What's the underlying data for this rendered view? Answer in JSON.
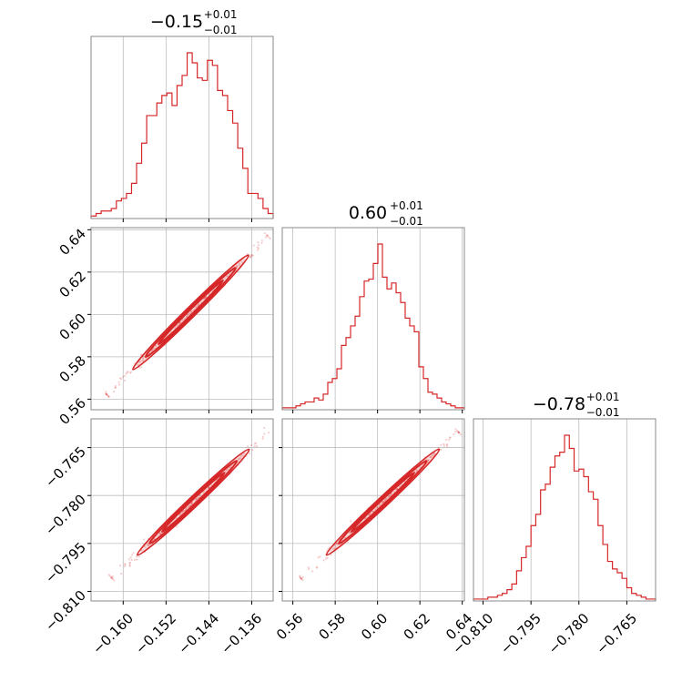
{
  "chart_data": [
    {
      "type": "histogram",
      "panel": "diag-0",
      "title": {
        "value": "−0.15",
        "upper": "+0.01",
        "lower": "−0.01"
      },
      "x_range": [
        -0.166,
        -0.132
      ],
      "x_ticks": [
        -0.16,
        -0.152,
        -0.144,
        -0.136
      ],
      "x_tick_labels": [],
      "counts": [
        1,
        2,
        3,
        3,
        4,
        7,
        8,
        10,
        14,
        22,
        30,
        41,
        41,
        46,
        49,
        50,
        45,
        53,
        57,
        66,
        62,
        56,
        55,
        63,
        61,
        51,
        49,
        43,
        38,
        28,
        20,
        10,
        10,
        8,
        4,
        2
      ]
    },
    {
      "type": "scatter",
      "panel": "2d-1-0",
      "x_range": [
        -0.166,
        -0.132
      ],
      "y_range": [
        0.555,
        0.641
      ],
      "x_ticks": [
        -0.16,
        -0.152,
        -0.144,
        -0.136
      ],
      "y_ticks": [
        0.56,
        0.58,
        0.6,
        0.62,
        0.64
      ],
      "x_tick_labels": [],
      "y_tick_labels": [
        "0.56",
        "0.58",
        "0.60",
        "0.62",
        "0.64"
      ],
      "ridge": {
        "start": [
          -0.163,
          0.562
        ],
        "end": [
          -0.133,
          0.637
        ]
      }
    },
    {
      "type": "histogram",
      "panel": "diag-1",
      "title": {
        "value": "0.60",
        "upper": "+0.01",
        "lower": "−0.01"
      },
      "x_range": [
        0.555,
        0.641
      ],
      "x_ticks": [
        0.56,
        0.58,
        0.6,
        0.62,
        0.64
      ],
      "x_tick_labels": [],
      "counts": [
        1,
        1,
        1,
        2,
        3,
        4,
        4,
        6,
        5,
        8,
        14,
        16,
        21,
        33,
        37,
        43,
        48,
        58,
        66,
        67,
        75,
        85,
        68,
        62,
        65,
        60,
        55,
        47,
        43,
        40,
        22,
        16,
        9,
        8,
        6,
        4,
        3,
        2,
        1,
        1
      ]
    },
    {
      "type": "scatter",
      "panel": "2d-2-0",
      "x_range": [
        -0.166,
        -0.132
      ],
      "y_range": [
        -0.813,
        -0.756
      ],
      "x_ticks": [
        -0.16,
        -0.152,
        -0.144,
        -0.136
      ],
      "y_ticks": [
        -0.81,
        -0.795,
        -0.78,
        -0.765
      ],
      "x_tick_labels": [
        "−0.160",
        "−0.152",
        "−0.144",
        "−0.136"
      ],
      "y_tick_labels": [
        "−0.810",
        "−0.795",
        "−0.780",
        "−0.765"
      ],
      "ridge": {
        "start": [
          -0.162,
          -0.806
        ],
        "end": [
          -0.133,
          -0.76
        ]
      }
    },
    {
      "type": "scatter",
      "panel": "2d-2-1",
      "x_range": [
        0.555,
        0.641
      ],
      "y_range": [
        -0.813,
        -0.756
      ],
      "x_ticks": [
        0.56,
        0.58,
        0.6,
        0.62,
        0.64
      ],
      "y_ticks": [
        -0.81,
        -0.795,
        -0.78,
        -0.765
      ],
      "x_tick_labels": [
        "0.56",
        "0.58",
        "0.60",
        "0.62",
        "0.64"
      ],
      "y_tick_labels": [],
      "ridge": {
        "start": [
          0.564,
          -0.806
        ],
        "end": [
          0.638,
          -0.76
        ]
      }
    },
    {
      "type": "histogram",
      "panel": "diag-2",
      "title": {
        "value": "−0.78",
        "upper": "+0.01",
        "lower": "−0.01"
      },
      "x_range": [
        -0.813,
        -0.756
      ],
      "x_ticks": [
        -0.81,
        -0.795,
        -0.78,
        -0.765
      ],
      "x_tick_labels": [
        "−0.810",
        "−0.795",
        "−0.780",
        "−0.765"
      ],
      "counts": [
        1,
        1,
        1,
        2,
        2,
        3,
        4,
        6,
        9,
        16,
        23,
        29,
        40,
        46,
        59,
        62,
        71,
        77,
        79,
        88,
        81,
        69,
        70,
        66,
        58,
        54,
        40,
        30,
        21,
        17,
        15,
        12,
        7,
        4,
        3,
        2,
        1,
        1
      ]
    }
  ],
  "colors": {
    "series": "#d62728",
    "frame": "#8a8a8a",
    "grid": "#bdbdbd"
  }
}
